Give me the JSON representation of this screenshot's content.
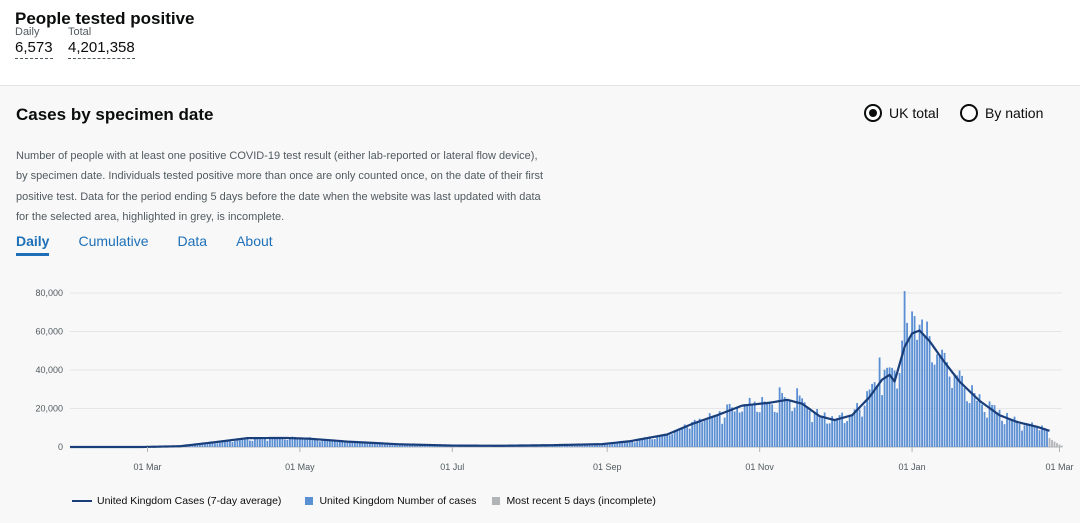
{
  "summary": {
    "title": "People tested positive",
    "daily_label": "Daily",
    "daily_value": "6,573",
    "total_label": "Total",
    "total_value": "4,201,358"
  },
  "card": {
    "title": "Cases by specimen date",
    "radio_uk_total": "UK total",
    "radio_by_nation": "By nation",
    "selected": "UK total",
    "description": "Number of people with at least one positive COVID-19 test result (either lab-reported or lateral flow device), by specimen date. Individuals tested positive more than once are only counted once, on the date of their first positive test. Data for the period ending 5 days before the date when the website was last updated with data for the selected area, highlighted in grey, is incomplete.",
    "tabs": [
      "Daily",
      "Cumulative",
      "Data",
      "About"
    ],
    "active_tab": "Daily"
  },
  "colors": {
    "bar": "#5b8fd4",
    "bar_incomplete": "#b1b4b6",
    "line": "#1a3e7a",
    "link": "#1d70b8"
  },
  "chart_data": {
    "type": "bar",
    "x_start": "2020-01-30",
    "x_end": "2021-03-02",
    "xticks": [
      "01 Mar",
      "01 May",
      "01 Jul",
      "01 Sep",
      "01 Nov",
      "01 Jan",
      "01 Mar"
    ],
    "yticks": [
      "0",
      "20,000",
      "40,000",
      "60,000",
      "80,000"
    ],
    "ylim": [
      0,
      80000
    ],
    "grid": true,
    "legend_position": "bottom",
    "series": [
      {
        "name": "United Kingdom Cases (7-day average)",
        "type": "line"
      },
      {
        "name": "United Kingdom Number of cases",
        "type": "bar"
      },
      {
        "name": "Most recent 5 days (incomplete)",
        "type": "bar"
      }
    ],
    "avg_keypoints": [
      [
        "2020-01-30",
        0
      ],
      [
        "2020-02-28",
        10
      ],
      [
        "2020-03-14",
        400
      ],
      [
        "2020-03-28",
        2500
      ],
      [
        "2020-04-10",
        4600
      ],
      [
        "2020-04-25",
        4700
      ],
      [
        "2020-05-05",
        4300
      ],
      [
        "2020-05-20",
        2800
      ],
      [
        "2020-06-10",
        1400
      ],
      [
        "2020-07-01",
        750
      ],
      [
        "2020-07-20",
        650
      ],
      [
        "2020-08-10",
        950
      ],
      [
        "2020-08-30",
        1500
      ],
      [
        "2020-09-10",
        3000
      ],
      [
        "2020-09-25",
        6500
      ],
      [
        "2020-10-05",
        12000
      ],
      [
        "2020-10-15",
        16500
      ],
      [
        "2020-10-25",
        21500
      ],
      [
        "2020-11-05",
        23000
      ],
      [
        "2020-11-12",
        24500
      ],
      [
        "2020-11-18",
        22500
      ],
      [
        "2020-11-25",
        16000
      ],
      [
        "2020-12-01",
        14000
      ],
      [
        "2020-12-08",
        16500
      ],
      [
        "2020-12-15",
        26000
      ],
      [
        "2020-12-20",
        35000
      ],
      [
        "2020-12-23",
        37500
      ],
      [
        "2020-12-25",
        34000
      ],
      [
        "2020-12-29",
        52000
      ],
      [
        "2021-01-01",
        59000
      ],
      [
        "2021-01-04",
        60500
      ],
      [
        "2021-01-08",
        55000
      ],
      [
        "2021-01-14",
        44000
      ],
      [
        "2021-01-20",
        34000
      ],
      [
        "2021-01-28",
        24000
      ],
      [
        "2021-02-05",
        16500
      ],
      [
        "2021-02-12",
        13000
      ],
      [
        "2021-02-20",
        10500
      ],
      [
        "2021-02-26",
        8000
      ],
      [
        "2021-03-02",
        6500
      ]
    ],
    "bar_spikes": [
      [
        "2020-10-28",
        25500
      ],
      [
        "2020-11-09",
        31000
      ],
      [
        "2020-11-16",
        30500
      ],
      [
        "2020-12-19",
        46500
      ],
      [
        "2020-12-29",
        81000
      ],
      [
        "2021-01-02",
        68000
      ],
      [
        "2021-01-04",
        63500
      ]
    ],
    "incomplete_days": 5
  }
}
